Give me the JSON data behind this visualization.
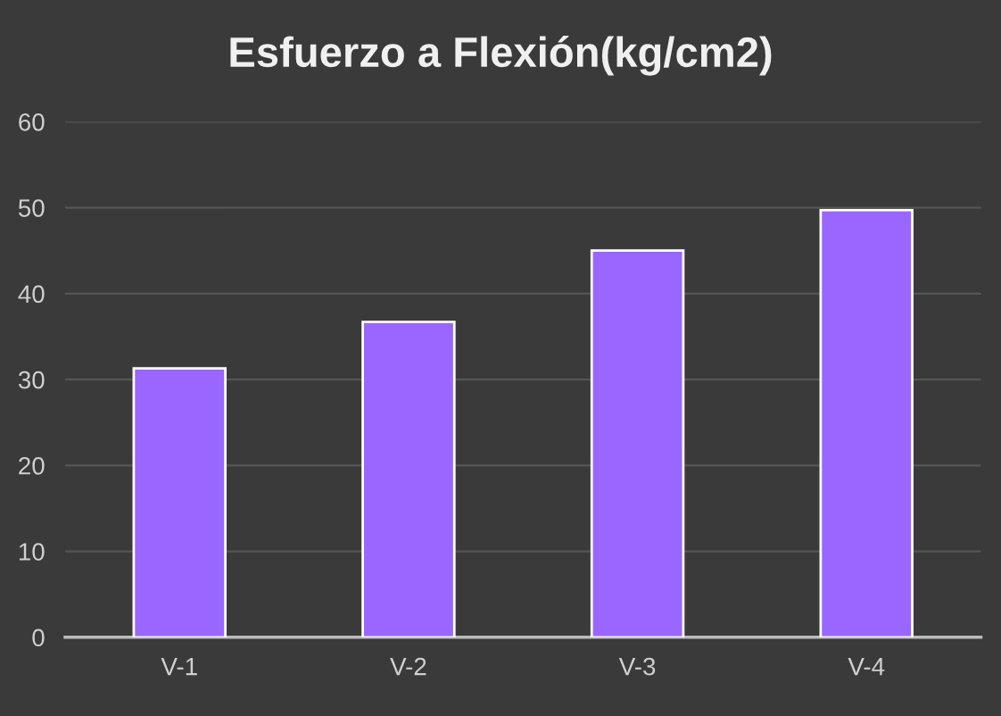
{
  "chart_data": {
    "type": "bar",
    "title": "Esfuerzo a Flexión(kg/cm2)",
    "categories": [
      "V-1",
      "V-2",
      "V-3",
      "V-4"
    ],
    "values": [
      31.3,
      36.7,
      45.0,
      49.7
    ],
    "color": "#9966ff",
    "ylim": [
      0,
      60
    ],
    "yticks": [
      0,
      10,
      20,
      30,
      40,
      50,
      60
    ],
    "grid": "y"
  }
}
